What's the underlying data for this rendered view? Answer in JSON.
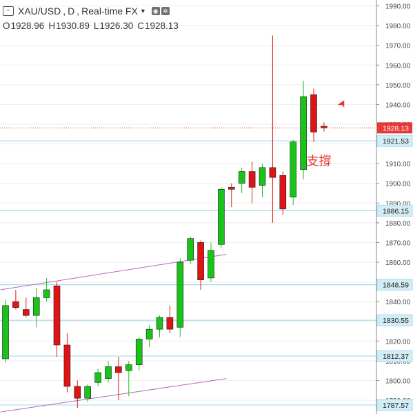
{
  "header": {
    "symbol": "XAU/USD",
    "interval": "D",
    "source": "Real-time FX",
    "ohlc": [
      {
        "key": "O",
        "value": "1928.96"
      },
      {
        "key": "H",
        "value": "1930.89"
      },
      {
        "key": "L",
        "value": "1926.30"
      },
      {
        "key": "C",
        "value": "1928.13"
      }
    ],
    "icons": {
      "collapse": "collapse-icon",
      "eye": "eye-icon",
      "settings": "gear-icon"
    }
  },
  "colors": {
    "up": "#19c319",
    "down": "#e01414",
    "hline": "#a9d9ec",
    "trendline": "#b46ab8",
    "current_price": "#e53935",
    "grid": "#eeeeee",
    "axis_text": "#444444"
  },
  "chart_data": {
    "type": "candlestick",
    "ylim": [
      1783,
      1993
    ],
    "y_ticks": [
      1790,
      1800,
      1810,
      1820,
      1830,
      1840,
      1850,
      1860,
      1870,
      1880,
      1890,
      1900,
      1910,
      1920,
      1930,
      1940,
      1950,
      1960,
      1970,
      1980,
      1990
    ],
    "candles": [
      {
        "open": 1811,
        "high": 1841,
        "low": 1809,
        "close": 1838
      },
      {
        "open": 1840,
        "high": 1846,
        "low": 1836,
        "close": 1837
      },
      {
        "open": 1836,
        "high": 1842,
        "low": 1832,
        "close": 1833
      },
      {
        "open": 1833,
        "high": 1847,
        "low": 1827,
        "close": 1842
      },
      {
        "open": 1842,
        "high": 1852,
        "low": 1840,
        "close": 1846
      },
      {
        "open": 1848,
        "high": 1850,
        "low": 1812,
        "close": 1818
      },
      {
        "open": 1818,
        "high": 1824,
        "low": 1794,
        "close": 1797
      },
      {
        "open": 1797,
        "high": 1800,
        "low": 1786,
        "close": 1791
      },
      {
        "open": 1791,
        "high": 1798,
        "low": 1789,
        "close": 1797
      },
      {
        "open": 1799,
        "high": 1806,
        "low": 1797,
        "close": 1804
      },
      {
        "open": 1801,
        "high": 1810,
        "low": 1799,
        "close": 1807
      },
      {
        "open": 1807,
        "high": 1812,
        "low": 1790,
        "close": 1804
      },
      {
        "open": 1805,
        "high": 1810,
        "low": 1792,
        "close": 1808
      },
      {
        "open": 1808,
        "high": 1822,
        "low": 1805,
        "close": 1821
      },
      {
        "open": 1821,
        "high": 1828,
        "low": 1817,
        "close": 1826
      },
      {
        "open": 1826,
        "high": 1833,
        "low": 1822,
        "close": 1832
      },
      {
        "open": 1832,
        "high": 1838,
        "low": 1824,
        "close": 1826
      },
      {
        "open": 1827,
        "high": 1862,
        "low": 1822,
        "close": 1860
      },
      {
        "open": 1861,
        "high": 1873,
        "low": 1859,
        "close": 1872
      },
      {
        "open": 1870,
        "high": 1871,
        "low": 1846,
        "close": 1851
      },
      {
        "open": 1852,
        "high": 1870,
        "low": 1850,
        "close": 1866
      },
      {
        "open": 1869,
        "high": 1898,
        "low": 1867,
        "close": 1897
      },
      {
        "open": 1898,
        "high": 1900,
        "low": 1888,
        "close": 1897
      },
      {
        "open": 1900,
        "high": 1908,
        "low": 1895,
        "close": 1906
      },
      {
        "open": 1906,
        "high": 1911,
        "low": 1890,
        "close": 1898
      },
      {
        "open": 1899,
        "high": 1910,
        "low": 1893,
        "close": 1908
      },
      {
        "open": 1908,
        "high": 1975,
        "low": 1880,
        "close": 1903
      },
      {
        "open": 1904,
        "high": 1906,
        "low": 1884,
        "close": 1887
      },
      {
        "open": 1893,
        "high": 1922,
        "low": 1889,
        "close": 1921
      },
      {
        "open": 1907,
        "high": 1952,
        "low": 1902,
        "close": 1944
      },
      {
        "open": 1945,
        "high": 1948,
        "low": 1921,
        "close": 1926
      },
      {
        "open": 1928.96,
        "high": 1930.89,
        "low": 1926.3,
        "close": 1928.13
      }
    ],
    "horizontal_levels": [
      {
        "value": 1921.53,
        "label": "1921.53"
      },
      {
        "value": 1886.15,
        "label": "1886.15"
      },
      {
        "value": 1848.59,
        "label": "1848.59"
      },
      {
        "value": 1830.55,
        "label": "1830.55"
      },
      {
        "value": 1812.37,
        "label": "1812.37"
      },
      {
        "value": 1787.57,
        "label": "1787.57"
      }
    ],
    "current_price": {
      "value": 1928.13,
      "label": "1928.13"
    },
    "trendlines": [
      {
        "from": {
          "bar": -0.5,
          "price": 1846
        },
        "to": {
          "bar": 21.5,
          "price": 1864
        }
      },
      {
        "from": {
          "bar": -0.5,
          "price": 1784
        },
        "to": {
          "bar": 21.5,
          "price": 1801
        }
      }
    ],
    "annotation": {
      "text": "支撐",
      "bar": 30.5,
      "price": 1912
    },
    "arrow": {
      "direction": "up-right",
      "bar": 32.5,
      "price": 1939
    }
  }
}
